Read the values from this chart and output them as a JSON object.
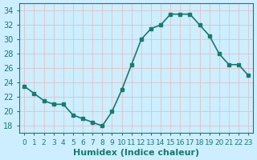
{
  "x": [
    0,
    1,
    2,
    3,
    4,
    5,
    6,
    7,
    8,
    9,
    10,
    11,
    12,
    13,
    14,
    15,
    16,
    17,
    18,
    19,
    20,
    21,
    22,
    23
  ],
  "y": [
    23.5,
    22.5,
    21.5,
    21.0,
    21.0,
    19.5,
    19.0,
    18.5,
    18.0,
    20.0,
    23.0,
    26.5,
    30.0,
    31.5,
    32.0,
    33.5,
    33.5,
    33.5,
    32.0,
    30.5,
    28.0,
    26.5,
    26.5,
    25.0
  ],
  "line_color": "#1a7a6e",
  "marker_color": "#1a7a6e",
  "bg_color": "#cceeff",
  "grid_color": "#e8b8b8",
  "xlabel": "Humidex (Indice chaleur)",
  "ylim": [
    17,
    35
  ],
  "xlim": [
    -0.5,
    23.5
  ],
  "yticks": [
    18,
    20,
    22,
    24,
    26,
    28,
    30,
    32,
    34
  ],
  "xtick_labels": [
    "0",
    "1",
    "2",
    "3",
    "4",
    "5",
    "6",
    "7",
    "8",
    "9",
    "10",
    "11",
    "12",
    "13",
    "14",
    "15",
    "16",
    "17",
    "18",
    "19",
    "20",
    "21",
    "22",
    "23"
  ],
  "xlabel_fontsize": 8,
  "tick_fontsize": 7,
  "linewidth": 1.2,
  "markersize": 3
}
